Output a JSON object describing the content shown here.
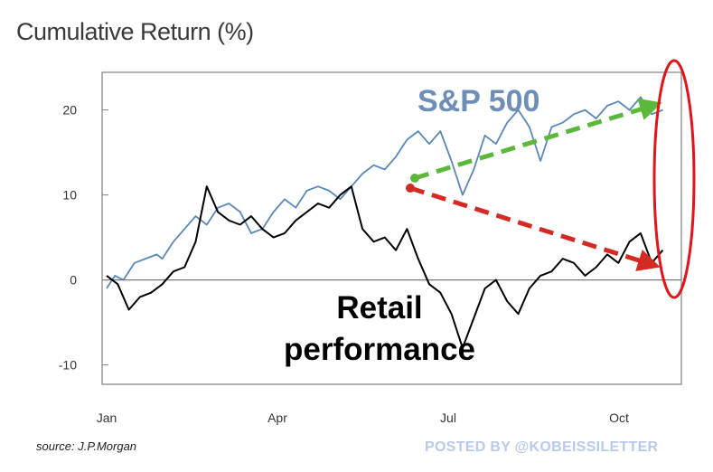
{
  "title": "Cumulative Return (%)",
  "source": "source: J.P.Morgan",
  "watermark": "POSTED BY @KOBEISSILETTER",
  "colors": {
    "sp500": "#5b87b5",
    "retail": "#000000",
    "green_arrow": "#5cb83a",
    "red_arrow": "#d42a22",
    "highlight_ellipse": "#e0141b"
  },
  "chart_data": {
    "type": "line",
    "x_ticks": [
      "Jan",
      "Apr",
      "Jul",
      "Oct"
    ],
    "y_ticks": [
      -10,
      0,
      10,
      20
    ],
    "ylim": [
      -11,
      24
    ],
    "xlim": [
      0,
      10.3
    ],
    "grid": false,
    "annotations": [
      {
        "text": "S&P 500",
        "color": "#5b87b5"
      },
      {
        "text": "Retail",
        "color": "#000000"
      },
      {
        "text": "performance",
        "color": "#000000"
      }
    ],
    "series": [
      {
        "name": "S&P 500",
        "color": "#5b87b5",
        "x": [
          0,
          0.15,
          0.3,
          0.5,
          0.7,
          0.9,
          1.0,
          1.2,
          1.4,
          1.6,
          1.8,
          2.0,
          2.2,
          2.4,
          2.6,
          2.8,
          3.0,
          3.2,
          3.4,
          3.6,
          3.8,
          4.0,
          4.2,
          4.4,
          4.6,
          4.8,
          5.0,
          5.2,
          5.4,
          5.6,
          5.8,
          6.0,
          6.2,
          6.4,
          6.6,
          6.8,
          7.0,
          7.2,
          7.4,
          7.6,
          7.8,
          8.0,
          8.2,
          8.4,
          8.6,
          8.8,
          9.0,
          9.2,
          9.4,
          9.6,
          9.8,
          10.0
        ],
        "y": [
          -1.0,
          0.5,
          0.0,
          2.0,
          2.5,
          3.0,
          2.5,
          4.5,
          6.0,
          7.5,
          6.5,
          8.5,
          9.0,
          8.0,
          5.5,
          6.0,
          8.0,
          9.5,
          8.5,
          10.5,
          11.0,
          10.5,
          9.5,
          11.0,
          12.5,
          13.5,
          13.0,
          14.5,
          16.5,
          17.5,
          16.0,
          17.5,
          14.0,
          10.0,
          13.0,
          17.0,
          16.0,
          18.5,
          20.0,
          18.0,
          14.0,
          18.0,
          18.5,
          19.5,
          20.0,
          19.0,
          20.5,
          21.0,
          20.0,
          21.5,
          19.5,
          20.0
        ]
      },
      {
        "name": "Retail performance",
        "color": "#000000",
        "x": [
          0,
          0.2,
          0.4,
          0.6,
          0.8,
          1.0,
          1.2,
          1.4,
          1.6,
          1.8,
          2.0,
          2.2,
          2.4,
          2.6,
          2.8,
          3.0,
          3.2,
          3.4,
          3.6,
          3.8,
          4.0,
          4.2,
          4.4,
          4.6,
          4.8,
          5.0,
          5.2,
          5.4,
          5.6,
          5.8,
          6.0,
          6.2,
          6.4,
          6.6,
          6.8,
          7.0,
          7.2,
          7.4,
          7.6,
          7.8,
          8.0,
          8.2,
          8.4,
          8.6,
          8.8,
          9.0,
          9.2,
          9.4,
          9.6,
          9.8,
          10.0
        ],
        "y": [
          0.5,
          -0.5,
          -3.5,
          -2.0,
          -1.5,
          -0.5,
          1.0,
          1.5,
          4.5,
          11.0,
          8.0,
          7.0,
          6.5,
          7.5,
          6.0,
          5.0,
          5.5,
          7.0,
          8.0,
          9.0,
          8.5,
          10.0,
          11.0,
          6.0,
          4.5,
          5.0,
          3.5,
          6.0,
          2.5,
          -0.5,
          -1.5,
          -4.0,
          -8.0,
          -4.5,
          -1.0,
          0.0,
          -2.5,
          -4.0,
          -1.0,
          0.5,
          1.0,
          2.5,
          2.0,
          0.5,
          1.5,
          3.0,
          2.0,
          4.5,
          5.5,
          2.0,
          3.5
        ]
      }
    ]
  }
}
